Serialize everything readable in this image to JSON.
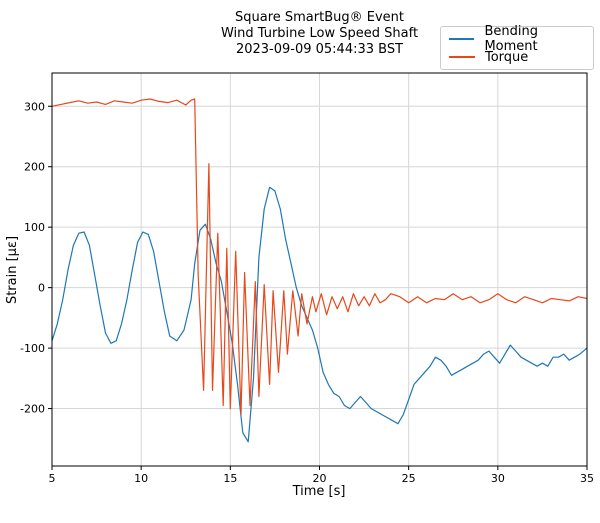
{
  "title_lines": [
    "Square SmartBug® Event",
    "Wind Turbine Low Speed Shaft",
    "2023-09-09 05:44:33 BST"
  ],
  "colors": {
    "bending": "#1f77b4",
    "torque": "#e8481a",
    "grid": "#d6d6d6"
  },
  "chart_data": {
    "type": "line",
    "title": "Square SmartBug® Event / Wind Turbine Low Speed Shaft / 2023-09-09 05:44:33 BST",
    "xlabel": "Time [s]",
    "ylabel": "Strain [με]",
    "xlim": [
      5,
      35
    ],
    "ylim": [
      -295,
      355
    ],
    "xticks": [
      5,
      10,
      15,
      20,
      25,
      30,
      35
    ],
    "yticks": [
      -200,
      -100,
      0,
      100,
      200,
      300
    ],
    "grid": true,
    "legend_position": "top-right",
    "series": [
      {
        "name": "Bending Moment",
        "x": [
          5.0,
          5.3,
          5.6,
          5.9,
          6.2,
          6.5,
          6.8,
          7.1,
          7.4,
          7.7,
          8.0,
          8.3,
          8.6,
          8.9,
          9.2,
          9.5,
          9.8,
          10.1,
          10.4,
          10.7,
          11.0,
          11.3,
          11.6,
          12.0,
          12.4,
          12.8,
          13.0,
          13.3,
          13.6,
          13.9,
          14.2,
          14.5,
          14.8,
          15.1,
          15.4,
          15.7,
          16.0,
          16.3,
          16.6,
          16.9,
          17.2,
          17.5,
          17.8,
          18.1,
          18.4,
          18.7,
          19.0,
          19.3,
          19.6,
          19.9,
          20.2,
          20.5,
          20.8,
          21.1,
          21.4,
          21.7,
          22.0,
          22.3,
          22.6,
          22.9,
          23.2,
          23.5,
          23.8,
          24.1,
          24.4,
          24.7,
          25.0,
          25.3,
          25.6,
          25.9,
          26.2,
          26.5,
          26.8,
          27.1,
          27.4,
          27.7,
          28.0,
          28.3,
          28.6,
          28.9,
          29.2,
          29.5,
          29.8,
          30.1,
          30.4,
          30.7,
          31.0,
          31.3,
          31.6,
          31.9,
          32.2,
          32.5,
          32.8,
          33.1,
          33.4,
          33.7,
          34.0,
          34.3,
          34.6,
          35.0
        ],
        "values": [
          -88,
          -60,
          -20,
          30,
          70,
          90,
          92,
          70,
          20,
          -30,
          -75,
          -92,
          -88,
          -60,
          -20,
          30,
          75,
          92,
          88,
          60,
          10,
          -40,
          -80,
          -88,
          -70,
          -20,
          40,
          95,
          105,
          80,
          40,
          10,
          -40,
          -90,
          -160,
          -240,
          -255,
          -150,
          50,
          130,
          166,
          160,
          130,
          80,
          40,
          0,
          -30,
          -50,
          -70,
          -100,
          -140,
          -160,
          -175,
          -180,
          -195,
          -200,
          -190,
          -180,
          -190,
          -200,
          -205,
          -210,
          -215,
          -220,
          -225,
          -210,
          -185,
          -160,
          -150,
          -140,
          -130,
          -115,
          -120,
          -130,
          -145,
          -140,
          -135,
          -130,
          -125,
          -120,
          -110,
          -105,
          -115,
          -125,
          -110,
          -95,
          -105,
          -115,
          -120,
          -125,
          -130,
          -125,
          -130,
          -115,
          -115,
          -110,
          -120,
          -115,
          -110,
          -100
        ]
      },
      {
        "name": "Torque",
        "x": [
          5.0,
          5.5,
          6.0,
          6.5,
          7.0,
          7.5,
          8.0,
          8.5,
          9.0,
          9.5,
          10.0,
          10.5,
          11.0,
          11.5,
          12.0,
          12.5,
          12.8,
          13.0,
          13.2,
          13.5,
          13.8,
          14.0,
          14.3,
          14.6,
          14.8,
          15.0,
          15.3,
          15.6,
          15.8,
          16.1,
          16.4,
          16.6,
          16.9,
          17.2,
          17.4,
          17.7,
          18.0,
          18.2,
          18.5,
          18.8,
          19.0,
          19.3,
          19.6,
          19.8,
          20.1,
          20.4,
          20.7,
          21.0,
          21.3,
          21.6,
          21.9,
          22.2,
          22.5,
          22.8,
          23.1,
          23.4,
          23.7,
          24.0,
          24.5,
          25.0,
          25.5,
          26.0,
          26.5,
          27.0,
          27.5,
          28.0,
          28.5,
          29.0,
          29.5,
          30.0,
          30.5,
          31.0,
          31.5,
          32.0,
          32.5,
          33.0,
          33.5,
          34.0,
          34.5,
          35.0
        ],
        "values": [
          300,
          303,
          306,
          309,
          305,
          307,
          303,
          309,
          307,
          305,
          310,
          312,
          308,
          306,
          310,
          302,
          310,
          312,
          20,
          -170,
          205,
          -170,
          90,
          -195,
          65,
          -200,
          60,
          -210,
          25,
          -195,
          10,
          -180,
          5,
          -160,
          -5,
          -140,
          -5,
          -110,
          -5,
          -80,
          -10,
          -60,
          -15,
          -40,
          -10,
          -45,
          -15,
          -35,
          -15,
          -40,
          -10,
          -30,
          -15,
          -30,
          -10,
          -25,
          -20,
          -10,
          -15,
          -25,
          -15,
          -25,
          -18,
          -20,
          -10,
          -20,
          -15,
          -25,
          -20,
          -10,
          -20,
          -25,
          -15,
          -20,
          -25,
          -18,
          -20,
          -22,
          -15,
          -18
        ]
      }
    ]
  }
}
